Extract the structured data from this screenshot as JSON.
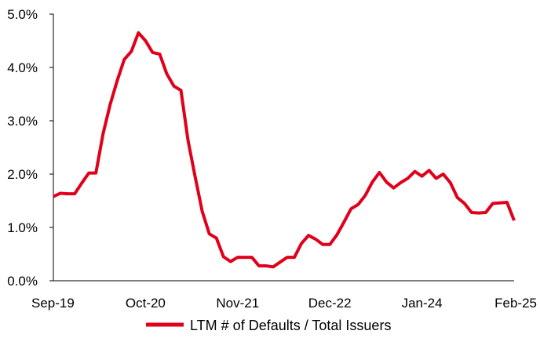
{
  "chart_data": {
    "type": "line",
    "title": "",
    "xlabel": "",
    "ylabel": "",
    "ylim": [
      0,
      5
    ],
    "y_ticks": [
      "0.0%",
      "1.0%",
      "2.0%",
      "3.0%",
      "4.0%",
      "5.0%"
    ],
    "x_ticks": [
      "Sep-19",
      "Oct-20",
      "Nov-21",
      "Dec-22",
      "Jan-24",
      "Feb-25"
    ],
    "x": [
      "Sep-19",
      "Oct-19",
      "Nov-19",
      "Dec-19",
      "Jan-20",
      "Feb-20",
      "Mar-20",
      "Apr-20",
      "May-20",
      "Jun-20",
      "Jul-20",
      "Aug-20",
      "Sep-20",
      "Oct-20",
      "Nov-20",
      "Dec-20",
      "Jan-21",
      "Feb-21",
      "Mar-21",
      "Apr-21",
      "May-21",
      "Jun-21",
      "Jul-21",
      "Aug-21",
      "Sep-21",
      "Oct-21",
      "Nov-21",
      "Dec-21",
      "Jan-22",
      "Feb-22",
      "Mar-22",
      "Apr-22",
      "May-22",
      "Jun-22",
      "Jul-22",
      "Aug-22",
      "Sep-22",
      "Oct-22",
      "Nov-22",
      "Dec-22",
      "Jan-23",
      "Feb-23",
      "Mar-23",
      "Apr-23",
      "May-23",
      "Jun-23",
      "Jul-23",
      "Aug-23",
      "Sep-23",
      "Oct-23",
      "Nov-23",
      "Dec-23",
      "Jan-24",
      "Feb-24",
      "Mar-24",
      "Apr-24",
      "May-24",
      "Jun-24",
      "Jul-24",
      "Aug-24",
      "Sep-24",
      "Oct-24",
      "Nov-24",
      "Dec-24",
      "Jan-25",
      "Feb-25"
    ],
    "series": [
      {
        "name": "LTM # of Defaults / Total Issuers",
        "color": "#E0001B",
        "values": [
          1.58,
          1.64,
          1.63,
          1.63,
          1.83,
          2.02,
          2.02,
          2.75,
          3.3,
          3.75,
          4.15,
          4.3,
          4.65,
          4.5,
          4.28,
          4.25,
          3.88,
          3.65,
          3.57,
          2.63,
          1.95,
          1.3,
          0.88,
          0.8,
          0.45,
          0.36,
          0.44,
          0.44,
          0.44,
          0.28,
          0.28,
          0.26,
          0.35,
          0.44,
          0.44,
          0.7,
          0.85,
          0.78,
          0.68,
          0.68,
          0.86,
          1.1,
          1.35,
          1.43,
          1.6,
          1.85,
          2.03,
          1.85,
          1.74,
          1.84,
          1.92,
          2.05,
          1.96,
          2.07,
          1.92,
          2.0,
          1.84,
          1.56,
          1.45,
          1.28,
          1.27,
          1.28,
          1.45,
          1.46,
          1.47,
          1.13
        ]
      }
    ],
    "legend": "bottom"
  }
}
